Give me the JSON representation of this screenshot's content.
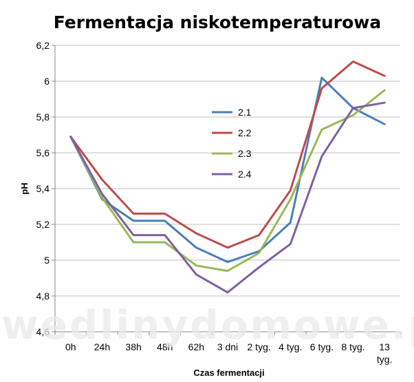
{
  "chart_data": {
    "type": "line",
    "title": "Fermentacja niskotemperaturowa",
    "xlabel": "Czas fermentacji",
    "ylabel": "pH",
    "categories": [
      "0h",
      "24h",
      "38h",
      "48h",
      "62h",
      "3 dni",
      "2 tyg.",
      "4 tyg.",
      "6 tyg.",
      "8 tyg.",
      "13 tyg."
    ],
    "ylim": [
      4.6,
      6.2
    ],
    "yticks": [
      4.6,
      4.8,
      5.0,
      5.2,
      5.4,
      5.6,
      5.8,
      6.0,
      6.2
    ],
    "ytick_labels": [
      "4,6",
      "4,8",
      "5",
      "5,2",
      "5,4",
      "5,6",
      "5,8",
      "6",
      "6,2"
    ],
    "grid": "horizontal",
    "legend_position": "center",
    "series": [
      {
        "name": "2.1",
        "color": "#4a7ebb",
        "values": [
          5.69,
          5.34,
          5.22,
          5.22,
          5.07,
          4.99,
          5.05,
          5.21,
          6.02,
          5.85,
          5.76
        ]
      },
      {
        "name": "2.2",
        "color": "#be4b48",
        "values": [
          5.69,
          5.45,
          5.26,
          5.26,
          5.15,
          5.07,
          5.14,
          5.39,
          5.96,
          6.11,
          6.03
        ]
      },
      {
        "name": "2.3",
        "color": "#98b954",
        "values": [
          5.69,
          5.35,
          5.1,
          5.1,
          4.97,
          4.94,
          5.04,
          5.34,
          5.73,
          5.81,
          5.95
        ]
      },
      {
        "name": "2.4",
        "color": "#7d60a0",
        "values": [
          5.69,
          5.37,
          5.14,
          5.14,
          4.92,
          4.82,
          4.96,
          5.09,
          5.58,
          5.85,
          5.88
        ]
      }
    ]
  },
  "watermark": "wedlinydomowe.pl"
}
